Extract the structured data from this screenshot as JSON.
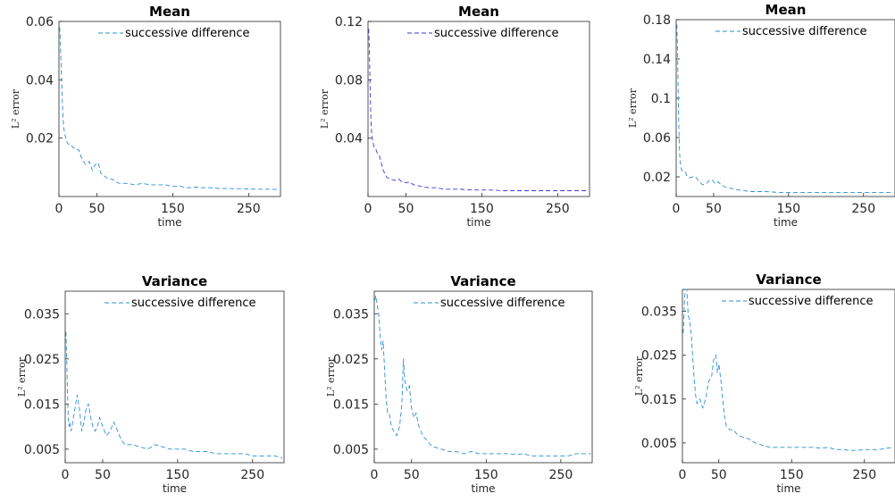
{
  "figure": {
    "background": "#ffffff"
  },
  "chart_data": [
    {
      "type": "line",
      "title": "Mean",
      "xlabel": "time",
      "ylabel": "L² error",
      "xlim": [
        0,
        292
      ],
      "ylim": [
        0,
        0.06
      ],
      "xticks": [
        0,
        50,
        150,
        250
      ],
      "yticks": [
        0.02,
        0.04,
        0.06
      ],
      "ytick_labels": [
        "0.02",
        "0.04",
        "0.06"
      ],
      "legend": "top",
      "series": [
        {
          "name": "successive difference",
          "color": "#2a8fd4",
          "style": "dashed",
          "x": [
            1,
            2,
            3,
            4,
            5,
            6,
            8,
            10,
            12,
            15,
            18,
            22,
            26,
            30,
            35,
            40,
            44,
            48,
            52,
            55,
            60,
            65,
            70,
            75,
            80,
            90,
            100,
            110,
            120,
            130,
            140,
            150,
            160,
            170,
            180,
            190,
            200,
            210,
            220,
            230,
            240,
            250,
            260,
            270,
            280,
            290
          ],
          "y": [
            0.058,
            0.052,
            0.044,
            0.036,
            0.029,
            0.024,
            0.021,
            0.019,
            0.018,
            0.018,
            0.017,
            0.016,
            0.016,
            0.013,
            0.011,
            0.012,
            0.009,
            0.011,
            0.0115,
            0.008,
            0.007,
            0.006,
            0.006,
            0.005,
            0.0045,
            0.0045,
            0.004,
            0.0045,
            0.004,
            0.004,
            0.004,
            0.0035,
            0.0035,
            0.003,
            0.0032,
            0.003,
            0.003,
            0.0028,
            0.0028,
            0.0027,
            0.0027,
            0.0026,
            0.0025,
            0.0025,
            0.0025,
            0.0024
          ]
        }
      ]
    },
    {
      "type": "line",
      "title": "Mean",
      "xlabel": "time",
      "ylabel": "L² error",
      "xlim": [
        0,
        292
      ],
      "ylim": [
        0,
        0.12
      ],
      "xticks": [
        0,
        50,
        150,
        250
      ],
      "yticks": [
        0.04,
        0.08,
        0.12
      ],
      "ytick_labels": [
        "0.04",
        "0.08",
        "0.12"
      ],
      "legend": "top",
      "series": [
        {
          "name": "successive difference",
          "color": "#3a3adc",
          "style": "dashed",
          "x": [
            1,
            2,
            3,
            4,
            5,
            6,
            8,
            10,
            12,
            15,
            18,
            20,
            25,
            30,
            35,
            40,
            45,
            50,
            55,
            60,
            70,
            80,
            90,
            100,
            120,
            140,
            160,
            180,
            200,
            220,
            240,
            260,
            280,
            290
          ],
          "y": [
            0.115,
            0.095,
            0.07,
            0.05,
            0.042,
            0.038,
            0.034,
            0.033,
            0.03,
            0.028,
            0.022,
            0.018,
            0.013,
            0.012,
            0.011,
            0.012,
            0.01,
            0.0095,
            0.01,
            0.008,
            0.007,
            0.006,
            0.006,
            0.005,
            0.005,
            0.0045,
            0.0045,
            0.004,
            0.004,
            0.004,
            0.004,
            0.004,
            0.004,
            0.004
          ]
        }
      ]
    },
    {
      "type": "line",
      "title": "Mean",
      "xlabel": "time",
      "ylabel": "L² error",
      "xlim": [
        0,
        292
      ],
      "ylim": [
        0,
        0.18
      ],
      "xticks": [
        0,
        50,
        150,
        250
      ],
      "yticks": [
        0.02,
        0.06,
        0.1,
        0.14,
        0.18
      ],
      "ytick_labels": [
        "0.02",
        "0.06",
        "0.1",
        "0.14",
        "0.18"
      ],
      "legend": "top",
      "series": [
        {
          "name": "successive difference",
          "color": "#2a8fd4",
          "style": "dashed",
          "x": [
            1,
            2,
            3,
            4,
            5,
            6,
            8,
            10,
            12,
            15,
            18,
            22,
            26,
            30,
            35,
            40,
            44,
            48,
            52,
            56,
            60,
            65,
            70,
            80,
            90,
            100,
            120,
            140,
            160,
            180,
            200,
            220,
            240,
            260,
            280,
            290
          ],
          "y": [
            0.175,
            0.14,
            0.09,
            0.055,
            0.038,
            0.03,
            0.026,
            0.025,
            0.025,
            0.02,
            0.019,
            0.02,
            0.02,
            0.016,
            0.012,
            0.013,
            0.016,
            0.017,
            0.013,
            0.015,
            0.012,
            0.01,
            0.009,
            0.007,
            0.006,
            0.005,
            0.005,
            0.004,
            0.004,
            0.004,
            0.004,
            0.004,
            0.004,
            0.004,
            0.004,
            0.004
          ]
        }
      ]
    },
    {
      "type": "line",
      "title": "Variance",
      "xlabel": "time",
      "ylabel": "L² error",
      "xlim": [
        0,
        292
      ],
      "ylim": [
        0.002,
        0.04
      ],
      "xticks": [
        0,
        50,
        150,
        250
      ],
      "yticks": [
        0.005,
        0.015,
        0.025,
        0.035
      ],
      "ytick_labels": [
        "0.005",
        "0.015",
        "0.025",
        "0.035"
      ],
      "legend": "top",
      "series": [
        {
          "name": "successive difference",
          "color": "#2a8fd4",
          "style": "dashed",
          "x": [
            1,
            2,
            3,
            4,
            5,
            6,
            8,
            10,
            13,
            16,
            19,
            22,
            25,
            28,
            31,
            34,
            37,
            40,
            43,
            46,
            50,
            55,
            60,
            65,
            70,
            75,
            80,
            90,
            100,
            110,
            120,
            130,
            140,
            150,
            160,
            170,
            180,
            190,
            200,
            210,
            220,
            230,
            240,
            250,
            260,
            270,
            280,
            290
          ],
          "y": [
            0.031,
            0.025,
            0.018,
            0.012,
            0.01,
            0.011,
            0.009,
            0.011,
            0.014,
            0.017,
            0.014,
            0.009,
            0.011,
            0.014,
            0.015,
            0.012,
            0.01,
            0.009,
            0.01,
            0.012,
            0.01,
            0.008,
            0.009,
            0.011,
            0.009,
            0.007,
            0.006,
            0.006,
            0.0055,
            0.005,
            0.006,
            0.0055,
            0.005,
            0.005,
            0.005,
            0.0045,
            0.0045,
            0.0045,
            0.004,
            0.004,
            0.004,
            0.004,
            0.004,
            0.0035,
            0.0035,
            0.0035,
            0.0035,
            0.003
          ]
        }
      ]
    },
    {
      "type": "line",
      "title": "Variance",
      "xlabel": "time",
      "ylabel": "L² error",
      "xlim": [
        0,
        292
      ],
      "ylim": [
        0.002,
        0.04
      ],
      "xticks": [
        0,
        50,
        150,
        250
      ],
      "yticks": [
        0.005,
        0.015,
        0.025,
        0.035
      ],
      "ytick_labels": [
        "0.005",
        "0.015",
        "0.025",
        "0.035"
      ],
      "legend": "top",
      "series": [
        {
          "name": "successive difference",
          "color": "#2a8fd4",
          "style": "dashed",
          "x": [
            1,
            2,
            4,
            6,
            8,
            10,
            12,
            14,
            16,
            18,
            20,
            23,
            26,
            30,
            34,
            37,
            39,
            41,
            44,
            47,
            50,
            53,
            56,
            60,
            65,
            70,
            75,
            80,
            90,
            100,
            110,
            120,
            130,
            140,
            150,
            160,
            170,
            180,
            190,
            200,
            210,
            220,
            230,
            240,
            250,
            260,
            270,
            280,
            290
          ],
          "y": [
            0.038,
            0.039,
            0.037,
            0.035,
            0.03,
            0.027,
            0.029,
            0.022,
            0.016,
            0.013,
            0.013,
            0.01,
            0.009,
            0.008,
            0.01,
            0.015,
            0.025,
            0.02,
            0.018,
            0.019,
            0.014,
            0.012,
            0.013,
            0.01,
            0.008,
            0.007,
            0.006,
            0.0055,
            0.005,
            0.0045,
            0.0045,
            0.004,
            0.0045,
            0.004,
            0.004,
            0.004,
            0.004,
            0.004,
            0.0038,
            0.004,
            0.0035,
            0.0035,
            0.0035,
            0.0035,
            0.0035,
            0.0035,
            0.004,
            0.004,
            0.004
          ]
        }
      ]
    },
    {
      "type": "line",
      "title": "Variance",
      "xlabel": "time",
      "ylabel": "L² error",
      "xlim": [
        0,
        292
      ],
      "ylim": [
        0.0005,
        0.04
      ],
      "xticks": [
        0,
        50,
        150,
        250
      ],
      "yticks": [
        0.005,
        0.015,
        0.025,
        0.035
      ],
      "ytick_labels": [
        "0.005",
        "0.015",
        "0.025",
        "0.035"
      ],
      "legend": "top",
      "series": [
        {
          "name": "successive difference",
          "color": "#2a8fd4",
          "style": "dashed",
          "x": [
            1,
            2,
            3,
            4,
            5,
            6,
            7,
            8,
            10,
            12,
            14,
            16,
            18,
            20,
            24,
            28,
            32,
            36,
            40,
            43,
            46,
            48,
            50,
            53,
            56,
            58,
            60,
            65,
            70,
            75,
            80,
            90,
            100,
            110,
            120,
            130,
            140,
            150,
            160,
            170,
            180,
            190,
            200,
            210,
            220,
            230,
            240,
            250,
            260,
            270,
            280,
            290
          ],
          "y": [
            0.03,
            0.033,
            0.038,
            0.04,
            0.041,
            0.04,
            0.037,
            0.034,
            0.033,
            0.03,
            0.025,
            0.02,
            0.016,
            0.014,
            0.015,
            0.013,
            0.015,
            0.019,
            0.02,
            0.024,
            0.025,
            0.021,
            0.023,
            0.019,
            0.014,
            0.011,
            0.009,
            0.008,
            0.008,
            0.007,
            0.0065,
            0.006,
            0.005,
            0.0045,
            0.004,
            0.004,
            0.004,
            0.004,
            0.004,
            0.004,
            0.004,
            0.0038,
            0.004,
            0.0035,
            0.0035,
            0.0033,
            0.0033,
            0.0035,
            0.0035,
            0.0035,
            0.0038,
            0.004
          ]
        }
      ]
    }
  ]
}
